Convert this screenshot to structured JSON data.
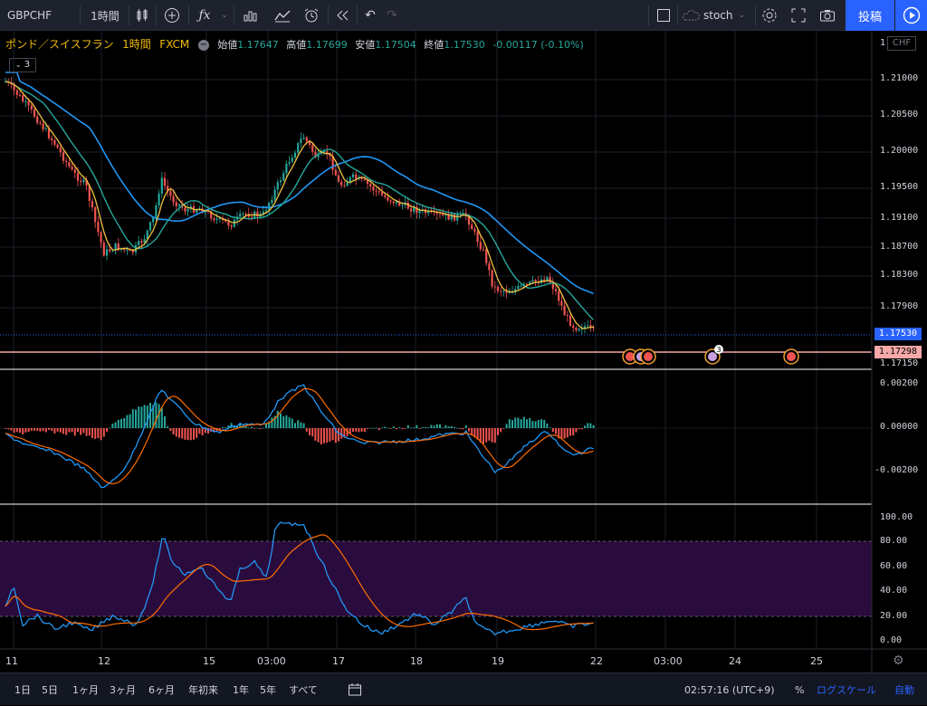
{
  "toolbar": {
    "symbol": "GBPCHF",
    "interval": "1時間",
    "indicator_template": "stoch",
    "post_label": "投稿"
  },
  "legend": {
    "title": "ポンド／スイスフラン",
    "interval": "1時間",
    "source": "FXCM",
    "open_label": "始値",
    "open_value": "1.17647",
    "high_label": "高値",
    "high_value": "1.17699",
    "low_label": "安値",
    "low_value": "1.17504",
    "close_label": "終値",
    "close_value": "1.17530",
    "change": "-0.00117 (-0.10%)",
    "indicator_count": "3"
  },
  "price_axis": {
    "currency": "CHF",
    "ticks": [
      "1.21000",
      "1.20500",
      "1.20000",
      "1.19500",
      "1.19100",
      "1.18700",
      "1.18300",
      "1.17900",
      "1.17150"
    ],
    "top_partial": "1",
    "last_price": "1.17530",
    "alert_price": "1.17298",
    "last_price_color": "#2962ff",
    "alert_price_color": "#f7a8a8"
  },
  "macd_axis": {
    "ticks": [
      "0.00200",
      "0.00000",
      "-0.00200"
    ]
  },
  "stoch_axis": {
    "ticks": [
      "100.00",
      "80.00",
      "60.00",
      "40.00",
      "20.00",
      "0.00"
    ]
  },
  "time_axis": {
    "labels": [
      "11",
      "12",
      "15",
      "03:00",
      "17",
      "18",
      "19",
      "22",
      "03:00",
      "24",
      "25"
    ]
  },
  "events": {
    "badge_count": "3"
  },
  "bottom": {
    "ranges": [
      "1日",
      "5日",
      "1ヶ月",
      "3ヶ月",
      "6ヶ月",
      "年初来",
      "1年",
      "5年",
      "すべて"
    ],
    "clock": "02:57:16 (UTC+9)",
    "percent": "%",
    "log_scale": "ログスケール",
    "auto": "自動"
  },
  "colors": {
    "up": "#26a69a",
    "down": "#ef5350",
    "ma_fast": "#f0c040",
    "ma_mid": "#26a69a",
    "ma_slow": "#2196f3",
    "macd": "#2196f3",
    "signal": "#ff6d00",
    "stoch_band": "#2a0b3d"
  }
}
